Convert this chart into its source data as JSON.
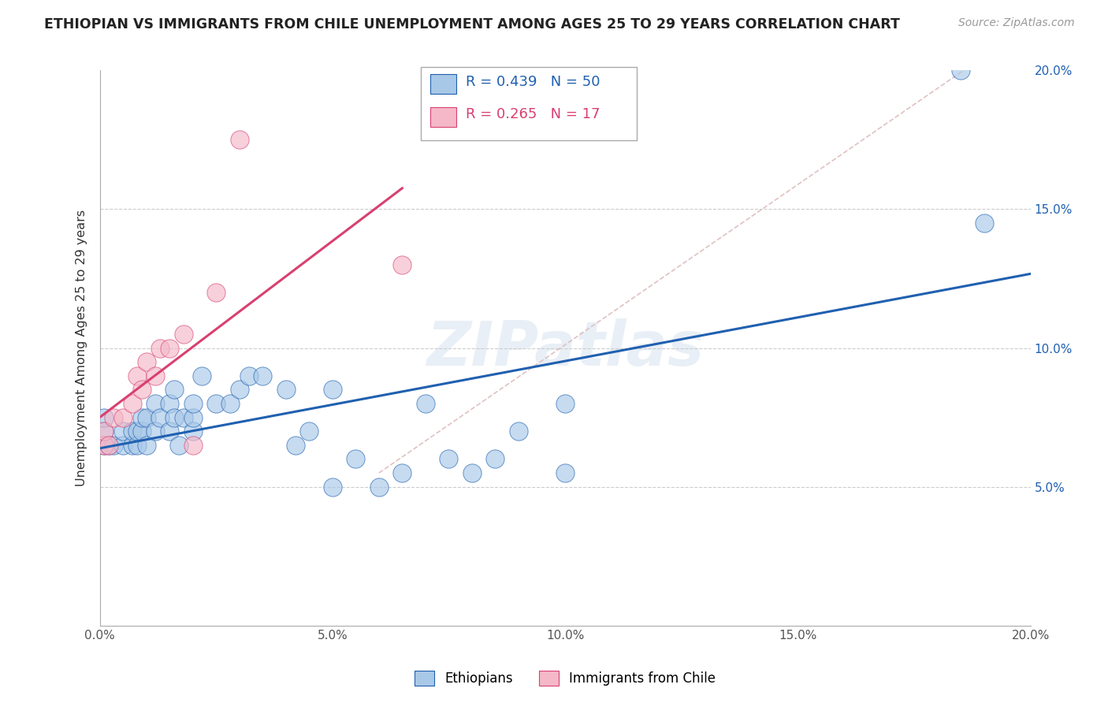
{
  "title": "ETHIOPIAN VS IMMIGRANTS FROM CHILE UNEMPLOYMENT AMONG AGES 25 TO 29 YEARS CORRELATION CHART",
  "source": "Source: ZipAtlas.com",
  "ylabel": "Unemployment Among Ages 25 to 29 years",
  "xlim": [
    0.0,
    0.2
  ],
  "ylim": [
    0.0,
    0.2
  ],
  "watermark": "ZIPatlas",
  "legend_blue_label": "Ethiopians",
  "legend_pink_label": "Immigrants from Chile",
  "R_blue": "0.439",
  "N_blue": "50",
  "R_pink": "0.265",
  "N_pink": "17",
  "blue_color": "#a8c8e8",
  "pink_color": "#f4b8c8",
  "trendline_blue": "#2060b0",
  "trendline_pink": "#d84070",
  "ref_line_color": "#ccaaaa",
  "ethiopians_x": [
    0.001,
    0.001,
    0.001,
    0.002,
    0.003,
    0.005,
    0.005,
    0.007,
    0.007,
    0.008,
    0.008,
    0.009,
    0.009,
    0.01,
    0.01,
    0.012,
    0.012,
    0.013,
    0.015,
    0.015,
    0.016,
    0.016,
    0.017,
    0.018,
    0.02,
    0.02,
    0.02,
    0.022,
    0.025,
    0.028,
    0.03,
    0.032,
    0.035,
    0.04,
    0.042,
    0.045,
    0.05,
    0.05,
    0.055,
    0.06,
    0.065,
    0.07,
    0.075,
    0.08,
    0.085,
    0.09,
    0.1,
    0.1,
    0.185,
    0.19
  ],
  "ethiopians_y": [
    0.065,
    0.07,
    0.075,
    0.065,
    0.065,
    0.065,
    0.07,
    0.065,
    0.07,
    0.065,
    0.07,
    0.07,
    0.075,
    0.065,
    0.075,
    0.07,
    0.08,
    0.075,
    0.07,
    0.08,
    0.075,
    0.085,
    0.065,
    0.075,
    0.07,
    0.075,
    0.08,
    0.09,
    0.08,
    0.08,
    0.085,
    0.09,
    0.09,
    0.085,
    0.065,
    0.07,
    0.085,
    0.05,
    0.06,
    0.05,
    0.055,
    0.08,
    0.06,
    0.055,
    0.06,
    0.07,
    0.08,
    0.055,
    0.2,
    0.145
  ],
  "chile_x": [
    0.001,
    0.001,
    0.002,
    0.003,
    0.005,
    0.007,
    0.008,
    0.009,
    0.01,
    0.012,
    0.013,
    0.015,
    0.018,
    0.02,
    0.025,
    0.03,
    0.065
  ],
  "chile_y": [
    0.065,
    0.07,
    0.065,
    0.075,
    0.075,
    0.08,
    0.09,
    0.085,
    0.095,
    0.09,
    0.1,
    0.1,
    0.105,
    0.065,
    0.12,
    0.175,
    0.13
  ],
  "background_color": "#ffffff",
  "grid_color": "#cccccc"
}
